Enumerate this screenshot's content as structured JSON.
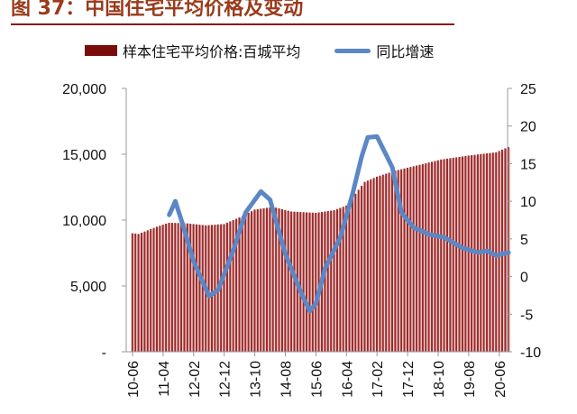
{
  "title": "图 37：中国住宅平均价格及变动",
  "chart_data": {
    "type": "bar+line",
    "title": "图 37：中国住宅平均价格及变动",
    "legend_position": "top",
    "colors": {
      "bar": "#7a0c0c",
      "line": "#5b87c5",
      "title": "#9a3b1c"
    },
    "x_start": "2010-06",
    "x_end": "2020-09",
    "x_tick_labels": [
      "10-06",
      "11-04",
      "12-02",
      "12-12",
      "13-10",
      "14-08",
      "15-06",
      "16-04",
      "17-02",
      "17-12",
      "18-10",
      "19-08",
      "20-06"
    ],
    "left_axis": {
      "ylim": [
        0,
        20000
      ],
      "tick_labels": [
        "-",
        "5,000",
        "10,000",
        "15,000",
        "20,000"
      ]
    },
    "right_axis": {
      "ylim": [
        -10,
        25
      ],
      "tick_labels": [
        "-10",
        "-5",
        "0",
        "5",
        "10",
        "15",
        "20",
        "25"
      ]
    },
    "series": [
      {
        "name": "样本住宅平均价格:百城平均",
        "type": "bar",
        "axis": "left",
        "points": [
          [
            "2010-06",
            9000
          ],
          [
            "2010-08",
            8950
          ],
          [
            "2011-02",
            9500
          ],
          [
            "2011-06",
            9800
          ],
          [
            "2011-12",
            9750
          ],
          [
            "2012-06",
            9600
          ],
          [
            "2012-12",
            9700
          ],
          [
            "2013-06",
            10300
          ],
          [
            "2013-10",
            10800
          ],
          [
            "2014-04",
            11000
          ],
          [
            "2014-10",
            10650
          ],
          [
            "2015-06",
            10550
          ],
          [
            "2015-12",
            10750
          ],
          [
            "2016-04",
            11100
          ],
          [
            "2016-10",
            12900
          ],
          [
            "2017-02",
            13300
          ],
          [
            "2017-08",
            13750
          ],
          [
            "2018-04",
            14200
          ],
          [
            "2018-11",
            14600
          ],
          [
            "2019-08",
            14900
          ],
          [
            "2020-05",
            15150
          ],
          [
            "2020-09",
            15550
          ]
        ]
      },
      {
        "name": "同比增速",
        "type": "line",
        "axis": "right",
        "points": [
          [
            "2011-06",
            8.2
          ],
          [
            "2011-08",
            10.0
          ],
          [
            "2011-10",
            7.5
          ],
          [
            "2012-02",
            2.0
          ],
          [
            "2012-07",
            -2.6
          ],
          [
            "2012-10",
            -1.8
          ],
          [
            "2013-03",
            3.5
          ],
          [
            "2013-07",
            8.5
          ],
          [
            "2013-12",
            11.3
          ],
          [
            "2014-03",
            10.2
          ],
          [
            "2014-08",
            3.0
          ],
          [
            "2015-01",
            -2.0
          ],
          [
            "2015-04",
            -4.6
          ],
          [
            "2015-06",
            -3.6
          ],
          [
            "2015-09",
            1.1
          ],
          [
            "2016-02",
            5.2
          ],
          [
            "2016-06",
            11.0
          ],
          [
            "2016-09",
            16.0
          ],
          [
            "2016-11",
            18.5
          ],
          [
            "2017-02",
            18.6
          ],
          [
            "2017-07",
            14.5
          ],
          [
            "2017-10",
            8.5
          ],
          [
            "2018-02",
            6.5
          ],
          [
            "2018-07",
            5.6
          ],
          [
            "2018-12",
            5.2
          ],
          [
            "2019-06",
            3.8
          ],
          [
            "2019-11",
            3.2
          ],
          [
            "2020-02",
            3.4
          ],
          [
            "2020-05",
            2.8
          ],
          [
            "2020-09",
            3.2
          ]
        ]
      }
    ]
  }
}
